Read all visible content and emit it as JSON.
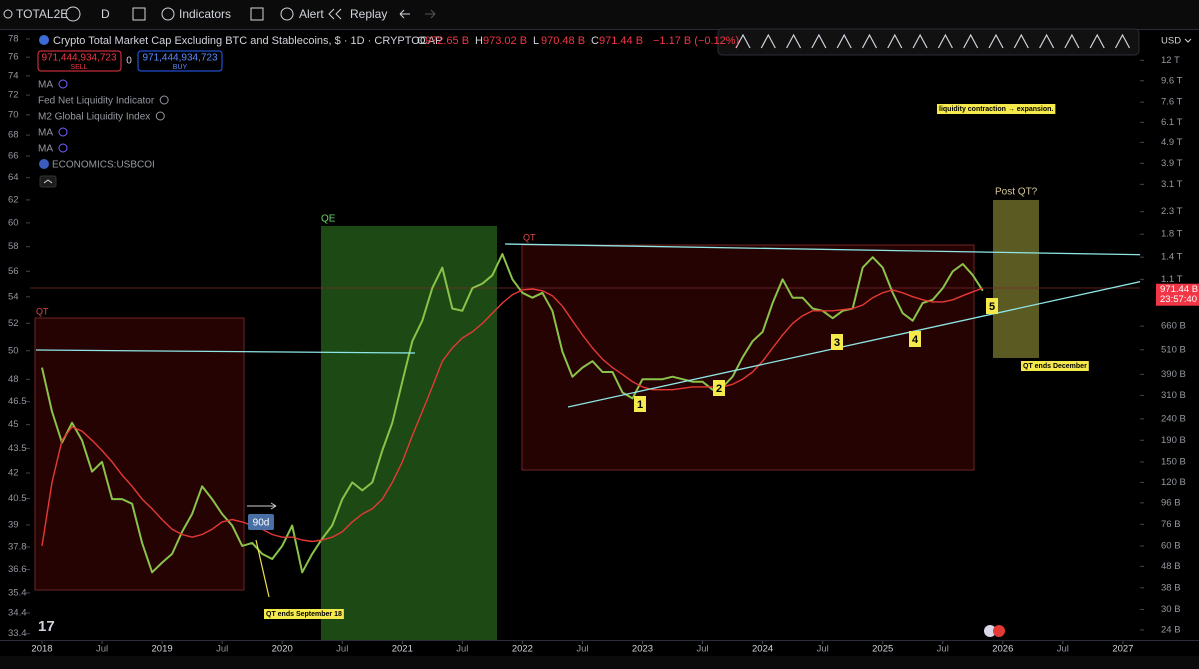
{
  "toolbar": {
    "symbol": "TOTAL2E",
    "interval": "D",
    "indicators": "Indicators",
    "alert": "Alert",
    "replay": "Replay",
    "currency": "USD"
  },
  "legend": {
    "title": "Crypto Total Market Cap Excluding BTC and Stablecoins, $ · 1D · CRYPTOCAP",
    "ohlc": [
      {
        "key": "O",
        "value": "972.65 B"
      },
      {
        "key": "H",
        "value": "973.02 B"
      },
      {
        "key": "L",
        "value": "970.48 B"
      },
      {
        "key": "C",
        "value": "971.44 B"
      }
    ],
    "change": "−1.17 B (−0.12%)",
    "sell": {
      "price": "971,444,934,723",
      "label": "SELL"
    },
    "spread": "0",
    "buy": {
      "price": "971,444,934,723",
      "label": "BUY"
    }
  },
  "indicators": [
    "MA",
    "Fed Net Liquidity Indicator",
    "M2 Global Liquidity Index",
    "MA",
    "MA",
    "ECONOMICS:USBCOI"
  ],
  "chart_data": {
    "type": "line",
    "log_scale": true,
    "grid": false,
    "x": [
      "2018-01",
      "2018-02",
      "2018-03",
      "2018-04",
      "2018-05",
      "2018-06",
      "2018-07",
      "2018-08",
      "2018-09",
      "2018-10",
      "2018-11",
      "2018-12",
      "2019-01",
      "2019-02",
      "2019-03",
      "2019-04",
      "2019-05",
      "2019-06",
      "2019-07",
      "2019-08",
      "2019-09",
      "2019-10",
      "2019-11",
      "2019-12",
      "2020-01",
      "2020-02",
      "2020-03",
      "2020-04",
      "2020-05",
      "2020-06",
      "2020-07",
      "2020-08",
      "2020-09",
      "2020-10",
      "2020-11",
      "2020-12",
      "2021-01",
      "2021-02",
      "2021-03",
      "2021-04",
      "2021-05",
      "2021-06",
      "2021-07",
      "2021-08",
      "2021-09",
      "2021-10",
      "2021-11",
      "2021-12",
      "2022-01",
      "2022-02",
      "2022-03",
      "2022-04",
      "2022-05",
      "2022-06",
      "2022-07",
      "2022-08",
      "2022-09",
      "2022-10",
      "2022-11",
      "2022-12",
      "2023-01",
      "2023-02",
      "2023-03",
      "2023-04",
      "2023-05",
      "2023-06",
      "2023-07",
      "2023-08",
      "2023-09",
      "2023-10",
      "2023-11",
      "2023-12",
      "2024-01",
      "2024-02",
      "2024-03",
      "2024-04",
      "2024-05",
      "2024-06",
      "2024-07",
      "2024-08",
      "2024-09",
      "2024-10",
      "2024-11",
      "2024-12",
      "2025-01",
      "2025-02",
      "2025-03",
      "2025-04",
      "2025-05",
      "2025-06",
      "2025-07",
      "2025-08",
      "2025-09",
      "2025-10",
      "2025-11"
    ],
    "series": [
      {
        "color": "#8bc34a",
        "values": [
          420,
          260,
          185,
          230,
          190,
          135,
          150,
          100,
          100,
          95,
          62,
          45,
          50,
          55,
          70,
          85,
          115,
          100,
          85,
          75,
          60,
          62,
          55,
          52,
          60,
          75,
          45,
          55,
          65,
          75,
          100,
          120,
          110,
          120,
          170,
          230,
          360,
          560,
          700,
          1000,
          1250,
          800,
          780,
          1000,
          1050,
          1150,
          1450,
          1100,
          950,
          900,
          950,
          780,
          500,
          380,
          420,
          450,
          400,
          400,
          320,
          300,
          370,
          370,
          370,
          380,
          370,
          360,
          360,
          330,
          340,
          380,
          470,
          560,
          620,
          850,
          1100,
          900,
          900,
          800,
          780,
          720,
          780,
          800,
          1250,
          1400,
          1250,
          950,
          760,
          700,
          850,
          880,
          1000,
          1200,
          1300,
          1150,
          971.44
        ]
      },
      {
        "color": "#e53935",
        "values": [
          60,
          120,
          190,
          220,
          210,
          190,
          170,
          150,
          130,
          115,
          100,
          90,
          80,
          72,
          68,
          66,
          68,
          72,
          78,
          80,
          78,
          75,
          72,
          68,
          66,
          66,
          64,
          63,
          64,
          66,
          70,
          78,
          85,
          90,
          100,
          120,
          150,
          200,
          260,
          340,
          450,
          520,
          580,
          620,
          680,
          760,
          850,
          930,
          980,
          990,
          970,
          920,
          820,
          700,
          600,
          520,
          460,
          420,
          390,
          360,
          340,
          330,
          330,
          330,
          335,
          340,
          340,
          340,
          340,
          350,
          370,
          400,
          450,
          520,
          600,
          680,
          740,
          780,
          780,
          780,
          790,
          800,
          830,
          900,
          950,
          980,
          950,
          910,
          880,
          860,
          860,
          880,
          920,
          960,
          1000
        ]
      }
    ],
    "ylim": [
      21.5,
      16700
    ],
    "yticks": [
      {
        "value": 12000,
        "label": "12 T"
      },
      {
        "value": 9600,
        "label": "9.6 T"
      },
      {
        "value": 7600,
        "label": "7.6 T"
      },
      {
        "value": 6100,
        "label": "6.1 T"
      },
      {
        "value": 4900,
        "label": "4.9 T"
      },
      {
        "value": 3900,
        "label": "3.9 T"
      },
      {
        "value": 3100,
        "label": "3.1 T"
      },
      {
        "value": 2300,
        "label": "2.3 T"
      },
      {
        "value": 1800,
        "label": "1.8 T"
      },
      {
        "value": 1400,
        "label": "1.4 T"
      },
      {
        "value": 1100,
        "label": "1.1 T"
      },
      {
        "value": 660,
        "label": "660 B"
      },
      {
        "value": 510,
        "label": "510 B"
      },
      {
        "value": 390,
        "label": "390 B"
      },
      {
        "value": 310,
        "label": "310 B"
      },
      {
        "value": 240,
        "label": "240 B"
      },
      {
        "value": 190,
        "label": "190 B"
      },
      {
        "value": 150,
        "label": "150 B"
      },
      {
        "value": 120,
        "label": "120 B"
      },
      {
        "value": 96,
        "label": "96 B"
      },
      {
        "value": 76,
        "label": "76 B"
      },
      {
        "value": 60,
        "label": "60 B"
      },
      {
        "value": 48,
        "label": "48 B"
      },
      {
        "value": 38,
        "label": "38 B"
      },
      {
        "value": 30,
        "label": "30 B"
      },
      {
        "value": 24,
        "label": "24 B"
      }
    ],
    "y2lim": [
      33.1,
      79
    ],
    "y2ticks": [
      78,
      76,
      74,
      72,
      70,
      68,
      66,
      64,
      62,
      60,
      58,
      56,
      54,
      52,
      50,
      48,
      46.5,
      45,
      43.5,
      42,
      40.5,
      39,
      37.8,
      36.6,
      35.4,
      34.4,
      33.4
    ],
    "xticks": [
      {
        "value": "2018-01",
        "label": "2018"
      },
      {
        "value": "2018-07",
        "label": "Jul"
      },
      {
        "value": "2019-01",
        "label": "2019"
      },
      {
        "value": "2019-07",
        "label": "Jul"
      },
      {
        "value": "2020-01",
        "label": "2020"
      },
      {
        "value": "2020-07",
        "label": "Jul"
      },
      {
        "value": "2021-01",
        "label": "2021"
      },
      {
        "value": "2021-07",
        "label": "Jul"
      },
      {
        "value": "2022-01",
        "label": "2022"
      },
      {
        "value": "2022-07",
        "label": "Jul"
      },
      {
        "value": "2023-01",
        "label": "2023"
      },
      {
        "value": "2023-07",
        "label": "Jul"
      },
      {
        "value": "2024-01",
        "label": "2024"
      },
      {
        "value": "2024-07",
        "label": "Jul"
      },
      {
        "value": "2025-01",
        "label": "2025"
      },
      {
        "value": "2025-07",
        "label": "Jul"
      },
      {
        "value": "2026-01",
        "label": "2026"
      },
      {
        "value": "2026-07",
        "label": "Jul"
      },
      {
        "value": "2027-01",
        "label": "2027"
      }
    ],
    "last_price": {
      "value": 971.44,
      "label": "971.44 B"
    },
    "countdown": "23:57:40",
    "annotations": [
      "QT",
      "QE",
      "QT",
      "Post QT?",
      "1",
      "2",
      "3",
      "4",
      "5",
      "liquidity contraction → expansion.",
      "QT ends December",
      "QT ends September 18",
      "90d"
    ]
  }
}
